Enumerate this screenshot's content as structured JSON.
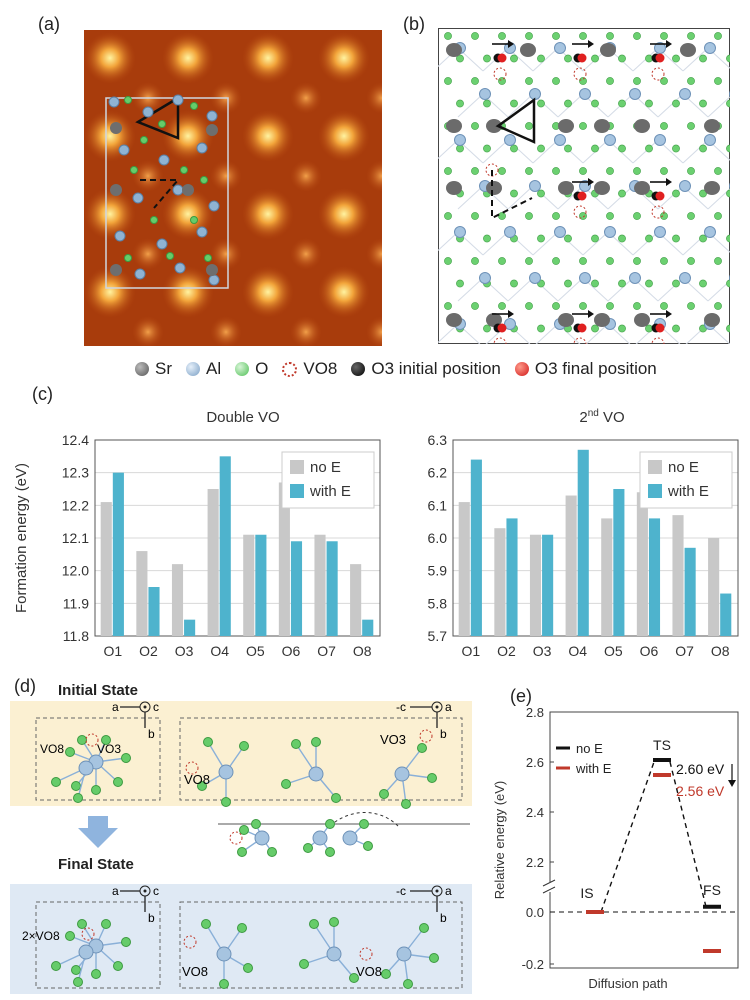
{
  "panels": {
    "a": "(a)",
    "b": "(b)",
    "c": "(c)",
    "d": "(d)",
    "e": "(e)"
  },
  "legend_atoms": [
    {
      "label": "Sr",
      "color": "#6e6e6e",
      "kind": "sr-icon"
    },
    {
      "label": "Al",
      "color": "#8fb3d3",
      "kind": "al-icon"
    },
    {
      "label": "O",
      "color": "#66cc6a",
      "kind": "o-icon"
    },
    {
      "label": "VO8",
      "color": "#c0392b",
      "kind": "vacancy-icon"
    },
    {
      "label": "O3 initial position",
      "color": "#111111",
      "kind": "o3-initial-icon"
    },
    {
      "label": "O3 final position",
      "color": "#e02020",
      "kind": "o3-final-icon"
    }
  ],
  "chart_data": [
    {
      "type": "bar",
      "title": "Double VO",
      "ylabel": "Formation energy (eV)",
      "xlabel": "",
      "categories": [
        "O1",
        "O2",
        "O3",
        "O4",
        "O5",
        "O6",
        "O7",
        "O8"
      ],
      "ylim": [
        11.8,
        12.4
      ],
      "yticks": [
        "11.8",
        "11.9",
        "12.0",
        "12.1",
        "12.2",
        "12.3",
        "12.4"
      ],
      "series": [
        {
          "name": "no E",
          "color": "#c8c8c8",
          "values": [
            12.21,
            12.06,
            12.02,
            12.25,
            12.11,
            12.27,
            12.11,
            12.02
          ]
        },
        {
          "name": "with E",
          "color": "#4eb3cd",
          "values": [
            12.3,
            11.95,
            11.85,
            12.35,
            12.11,
            12.09,
            12.09,
            11.85
          ]
        }
      ],
      "legend": "top-right"
    },
    {
      "type": "bar",
      "title_main": "2",
      "title_sup": "nd",
      "title_rest": " VO",
      "ylabel": "",
      "xlabel": "",
      "categories": [
        "O1",
        "O2",
        "O3",
        "O4",
        "O5",
        "O6",
        "O7",
        "O8"
      ],
      "ylim": [
        5.7,
        6.3
      ],
      "yticks": [
        "5.7",
        "5.8",
        "5.9",
        "6.0",
        "6.1",
        "6.2",
        "6.3"
      ],
      "series": [
        {
          "name": "no E",
          "color": "#c8c8c8",
          "values": [
            6.11,
            6.03,
            6.01,
            6.13,
            6.06,
            6.14,
            6.07,
            6.0
          ]
        },
        {
          "name": "with E",
          "color": "#4eb3cd",
          "values": [
            6.24,
            6.06,
            6.01,
            6.27,
            6.15,
            6.06,
            5.97,
            5.83
          ]
        }
      ],
      "legend": "top-right"
    },
    {
      "type": "line",
      "title": "",
      "ylabel": "Relative energy (eV)",
      "xlabel": "Diffusion path",
      "states": [
        "IS",
        "TS",
        "FS"
      ],
      "yticks": [
        "2.8",
        "2.6",
        "2.4",
        "2.2",
        "0.0",
        "-0.2"
      ],
      "series": [
        {
          "name": "no E",
          "color": "#111111",
          "values": [
            0.0,
            2.6,
            0.02
          ]
        },
        {
          "name": "with E",
          "color": "#c0392b",
          "values": [
            0.0,
            2.56,
            -0.15
          ]
        }
      ],
      "annotations": {
        "no_e": "2.60 eV",
        "with_e": "2.56 eV"
      },
      "legend": "top-left"
    }
  ],
  "panel_d": {
    "initial_state": "Initial State",
    "final_state": "Final State",
    "axes_left": {
      "horiz": "a",
      "vert": "b",
      "out": "c"
    },
    "axes_right": {
      "horiz": "-c",
      "vert": "b",
      "out": "a"
    },
    "labels_initial": {
      "vo8_left": "VO8",
      "vo3_left": "VO3",
      "vo8_right": "VO8",
      "vo3_right": "VO3"
    },
    "labels_final": {
      "vo8_left": "2×VO8",
      "vo8_right_a": "VO8",
      "vo8_right_b": "VO8"
    }
  }
}
